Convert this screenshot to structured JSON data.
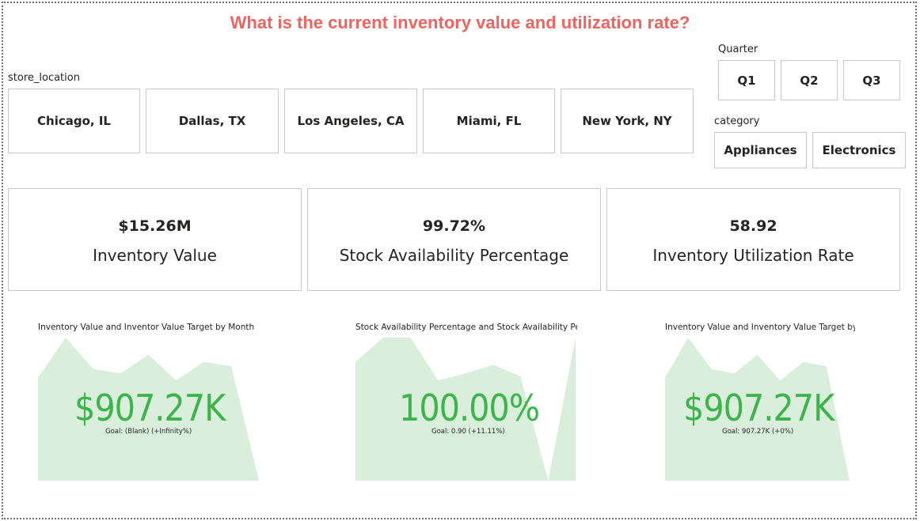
{
  "title": "What is the current inventory value and utilization rate?",
  "colors": {
    "title": "#f0645f",
    "kpi_good": "#3cb44b",
    "kpi_area": "#d9efdc"
  },
  "slicers": {
    "store_location": {
      "label": "store_location",
      "options": [
        "Chicago, IL",
        "Dallas, TX",
        "Los Angeles, CA",
        "Miami, FL",
        "New York, NY"
      ]
    },
    "quarter": {
      "label": "Quarter",
      "options": [
        "Q1",
        "Q2",
        "Q3"
      ]
    },
    "category": {
      "label": "category",
      "options": [
        "Appliances",
        "Electronics"
      ]
    }
  },
  "cards": [
    {
      "value": "$15.26M",
      "label": "Inventory Value"
    },
    {
      "value": "99.72%",
      "label": "Stock Availability Percentage"
    },
    {
      "value": "58.92",
      "label": "Inventory Utilization Rate"
    }
  ],
  "kpis": [
    {
      "title": "Inventory Value and Inventor Value Target by Month",
      "value": "$907.27K",
      "check": "✓",
      "goal": "Goal: (Blank) (+Infinity%)",
      "trend": [
        0.72,
        1.0,
        0.78,
        0.75,
        0.88,
        0.7,
        0.83,
        0.8,
        0.0
      ]
    },
    {
      "title": "Stock Availability Percentage and Stock Availability Perce...",
      "value": "100.00%",
      "check": "✓",
      "goal": "Goal: 0.90 (+11.11%)",
      "trend": [
        0.83,
        1.0,
        1.0,
        0.7,
        0.75,
        0.81,
        0.73,
        0.0,
        1.0
      ]
    },
    {
      "title": "Inventory Value and Inventory Value Target by ...",
      "value": "$907.27K",
      "check": "✓",
      "goal": "Goal: 907.27K (+0%)",
      "trend": [
        0.72,
        1.0,
        0.78,
        0.75,
        0.88,
        0.7,
        0.83,
        0.8,
        0.0
      ]
    }
  ]
}
